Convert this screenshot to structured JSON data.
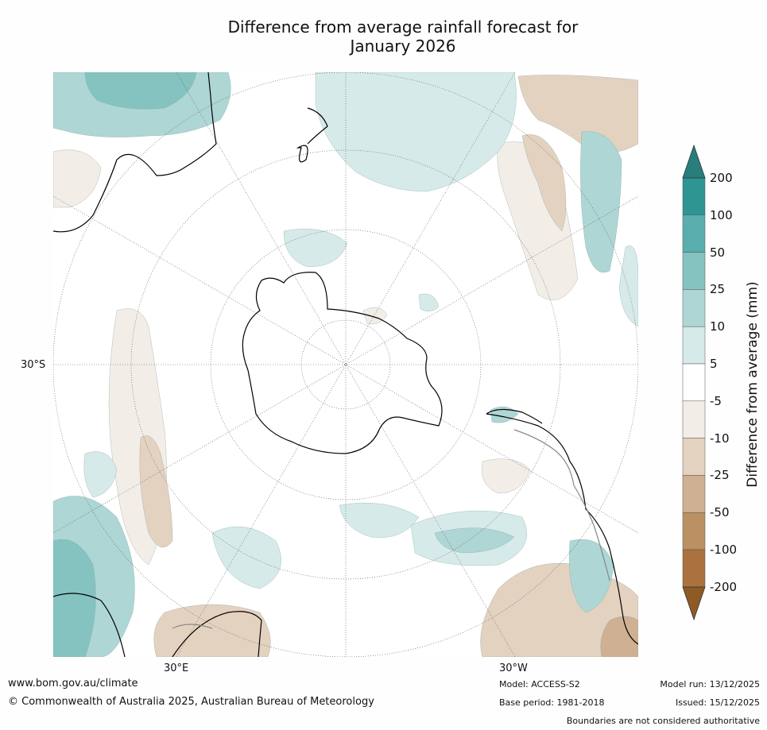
{
  "title_line1": "Difference from average rainfall forecast for",
  "title_line2": "January 2026",
  "map": {
    "lat_label": "30°S",
    "lon_label_left": "30°E",
    "lon_label_right": "30°W",
    "colors": {
      "wet_light": "#d6ebe9",
      "wet_mid": "#aed6d4",
      "wet_strong": "#84c3c0",
      "wet_deep": "#5aaead",
      "dry_light": "#f3ede8",
      "dry_mid": "#e4d2c0",
      "dry_strong": "#cfb093",
      "dry_deep": "#bb9062",
      "coast": "#000000"
    }
  },
  "colorbar": {
    "title": "Difference from average (mm)",
    "labels": [
      "200",
      "100",
      "50",
      "25",
      "10",
      "5",
      "-5",
      "-10",
      "-25",
      "-50",
      "-100",
      "-200"
    ],
    "colors": [
      "#2e9593",
      "#5aaead",
      "#84c3c0",
      "#aed6d4",
      "#d6ebe9",
      "#ffffff",
      "#f3ede8",
      "#e4d2c0",
      "#cfb093",
      "#bb9062",
      "#a9723e"
    ],
    "top_cap": "#277e7c",
    "bottom_cap": "#8e5b25"
  },
  "footer": {
    "website": "www.bom.gov.au/climate",
    "copyright": "© Commonwealth of Australia 2025, Australian Bureau of Meteorology",
    "model": "Model: ACCESS-S2",
    "base_period": "Base period: 1981-2018",
    "model_run": "Model run: 13/12/2025",
    "issued": "Issued: 15/12/2025",
    "disclaimer": "Boundaries are not considered authoritative"
  }
}
